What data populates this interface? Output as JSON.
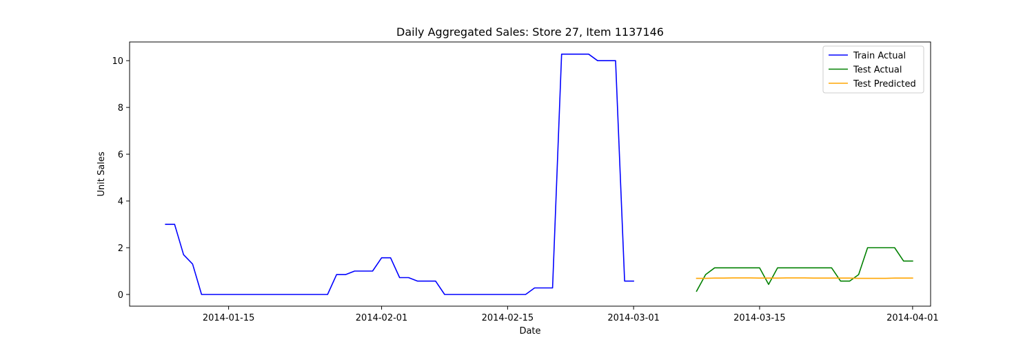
{
  "chart_data": {
    "type": "line",
    "title": "Daily Aggregated Sales: Store 27, Item 1137146",
    "xlabel": "Date",
    "ylabel": "Unit Sales",
    "xlim": [
      "2014-01-04",
      "2014-04-03"
    ],
    "ylim": [
      -0.5,
      10.8
    ],
    "x_ticks": [
      "2014-01-15",
      "2014-02-01",
      "2014-02-15",
      "2014-03-01",
      "2014-03-15",
      "2014-04-01"
    ],
    "y_ticks": [
      0,
      2,
      4,
      6,
      8,
      10
    ],
    "grid": false,
    "legend_position": "top-right",
    "series": [
      {
        "name": "Train Actual",
        "color": "#0000ff",
        "points": [
          [
            "2014-01-08",
            3.0
          ],
          [
            "2014-01-09",
            3.0
          ],
          [
            "2014-01-10",
            1.7
          ],
          [
            "2014-01-11",
            1.3
          ],
          [
            "2014-01-12",
            0.0
          ],
          [
            "2014-01-13",
            0.0
          ],
          [
            "2014-01-14",
            0.0
          ],
          [
            "2014-01-15",
            0.0
          ],
          [
            "2014-01-16",
            0.0
          ],
          [
            "2014-01-17",
            0.0
          ],
          [
            "2014-01-18",
            0.0
          ],
          [
            "2014-01-19",
            0.0
          ],
          [
            "2014-01-20",
            0.0
          ],
          [
            "2014-01-21",
            0.0
          ],
          [
            "2014-01-22",
            0.0
          ],
          [
            "2014-01-23",
            0.0
          ],
          [
            "2014-01-24",
            0.0
          ],
          [
            "2014-01-25",
            0.0
          ],
          [
            "2014-01-26",
            0.0
          ],
          [
            "2014-01-27",
            0.85
          ],
          [
            "2014-01-28",
            0.85
          ],
          [
            "2014-01-29",
            1.0
          ],
          [
            "2014-01-30",
            1.0
          ],
          [
            "2014-01-31",
            1.0
          ],
          [
            "2014-02-01",
            1.57
          ],
          [
            "2014-02-02",
            1.57
          ],
          [
            "2014-02-03",
            0.72
          ],
          [
            "2014-02-04",
            0.72
          ],
          [
            "2014-02-05",
            0.57
          ],
          [
            "2014-02-06",
            0.57
          ],
          [
            "2014-02-07",
            0.57
          ],
          [
            "2014-02-08",
            0.0
          ],
          [
            "2014-02-09",
            0.0
          ],
          [
            "2014-02-10",
            0.0
          ],
          [
            "2014-02-11",
            0.0
          ],
          [
            "2014-02-12",
            0.0
          ],
          [
            "2014-02-13",
            0.0
          ],
          [
            "2014-02-14",
            0.0
          ],
          [
            "2014-02-15",
            0.0
          ],
          [
            "2014-02-16",
            0.0
          ],
          [
            "2014-02-17",
            0.0
          ],
          [
            "2014-02-18",
            0.28
          ],
          [
            "2014-02-19",
            0.28
          ],
          [
            "2014-02-20",
            0.28
          ],
          [
            "2014-02-21",
            10.28
          ],
          [
            "2014-02-22",
            10.28
          ],
          [
            "2014-02-23",
            10.28
          ],
          [
            "2014-02-24",
            10.28
          ],
          [
            "2014-02-25",
            10.0
          ],
          [
            "2014-02-26",
            10.0
          ],
          [
            "2014-02-27",
            10.0
          ],
          [
            "2014-02-28",
            0.57
          ],
          [
            "2014-03-01",
            0.57
          ]
        ]
      },
      {
        "name": "Test Actual",
        "color": "#008000",
        "points": [
          [
            "2014-03-08",
            0.14
          ],
          [
            "2014-03-09",
            0.85
          ],
          [
            "2014-03-10",
            1.14
          ],
          [
            "2014-03-11",
            1.14
          ],
          [
            "2014-03-12",
            1.14
          ],
          [
            "2014-03-13",
            1.14
          ],
          [
            "2014-03-14",
            1.14
          ],
          [
            "2014-03-15",
            1.14
          ],
          [
            "2014-03-16",
            0.43
          ],
          [
            "2014-03-17",
            1.14
          ],
          [
            "2014-03-18",
            1.14
          ],
          [
            "2014-03-19",
            1.14
          ],
          [
            "2014-03-20",
            1.14
          ],
          [
            "2014-03-21",
            1.14
          ],
          [
            "2014-03-22",
            1.14
          ],
          [
            "2014-03-23",
            1.14
          ],
          [
            "2014-03-24",
            0.57
          ],
          [
            "2014-03-25",
            0.57
          ],
          [
            "2014-03-26",
            0.85
          ],
          [
            "2014-03-27",
            2.0
          ],
          [
            "2014-03-28",
            2.0
          ],
          [
            "2014-03-29",
            2.0
          ],
          [
            "2014-03-30",
            2.0
          ],
          [
            "2014-03-31",
            1.43
          ],
          [
            "2014-04-01",
            1.43
          ]
        ]
      },
      {
        "name": "Test Predicted",
        "color": "#ffa500",
        "points": [
          [
            "2014-03-08",
            0.69
          ],
          [
            "2014-03-09",
            0.69
          ],
          [
            "2014-03-10",
            0.7
          ],
          [
            "2014-03-11",
            0.7
          ],
          [
            "2014-03-12",
            0.71
          ],
          [
            "2014-03-13",
            0.71
          ],
          [
            "2014-03-14",
            0.71
          ],
          [
            "2014-03-15",
            0.7
          ],
          [
            "2014-03-16",
            0.7
          ],
          [
            "2014-03-17",
            0.7
          ],
          [
            "2014-03-18",
            0.71
          ],
          [
            "2014-03-19",
            0.71
          ],
          [
            "2014-03-20",
            0.71
          ],
          [
            "2014-03-21",
            0.7
          ],
          [
            "2014-03-22",
            0.7
          ],
          [
            "2014-03-23",
            0.7
          ],
          [
            "2014-03-24",
            0.7
          ],
          [
            "2014-03-25",
            0.7
          ],
          [
            "2014-03-26",
            0.69
          ],
          [
            "2014-03-27",
            0.69
          ],
          [
            "2014-03-28",
            0.69
          ],
          [
            "2014-03-29",
            0.69
          ],
          [
            "2014-03-30",
            0.7
          ],
          [
            "2014-03-31",
            0.7
          ],
          [
            "2014-04-01",
            0.7
          ]
        ]
      }
    ]
  }
}
